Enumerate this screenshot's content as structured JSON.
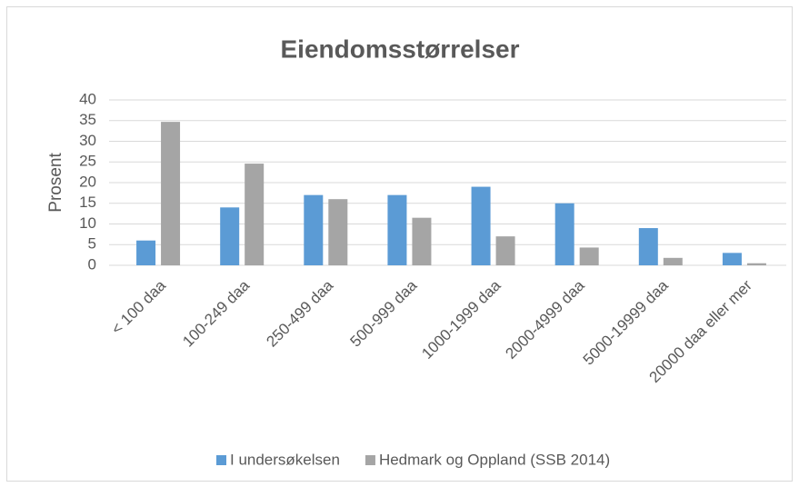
{
  "chart_data": {
    "type": "bar",
    "title": "Eiendomsstørrelser",
    "y_label": "Prosent",
    "categories": [
      "< 100 daa",
      "100-249 daa",
      "250-499 daa",
      "500-999 daa",
      "1000-1999 daa",
      "2000-4999 daa",
      "5000-19999 daa",
      "20000 daa eller mer"
    ],
    "series": [
      {
        "name": "I undersøkelsen",
        "color": "#5b9bd5",
        "values": [
          6,
          14,
          17,
          17,
          19,
          15,
          9,
          3
        ]
      },
      {
        "name": "Hedmark og Oppland (SSB 2014)",
        "color": "#a5a5a5",
        "values": [
          34.7,
          24.6,
          16,
          11.5,
          7,
          4.3,
          1.8,
          0.5
        ]
      }
    ],
    "ylim": [
      0,
      40
    ],
    "yticks": [
      0,
      5,
      10,
      15,
      20,
      25,
      30,
      35,
      40
    ],
    "grid": true,
    "legend": "bottom"
  }
}
